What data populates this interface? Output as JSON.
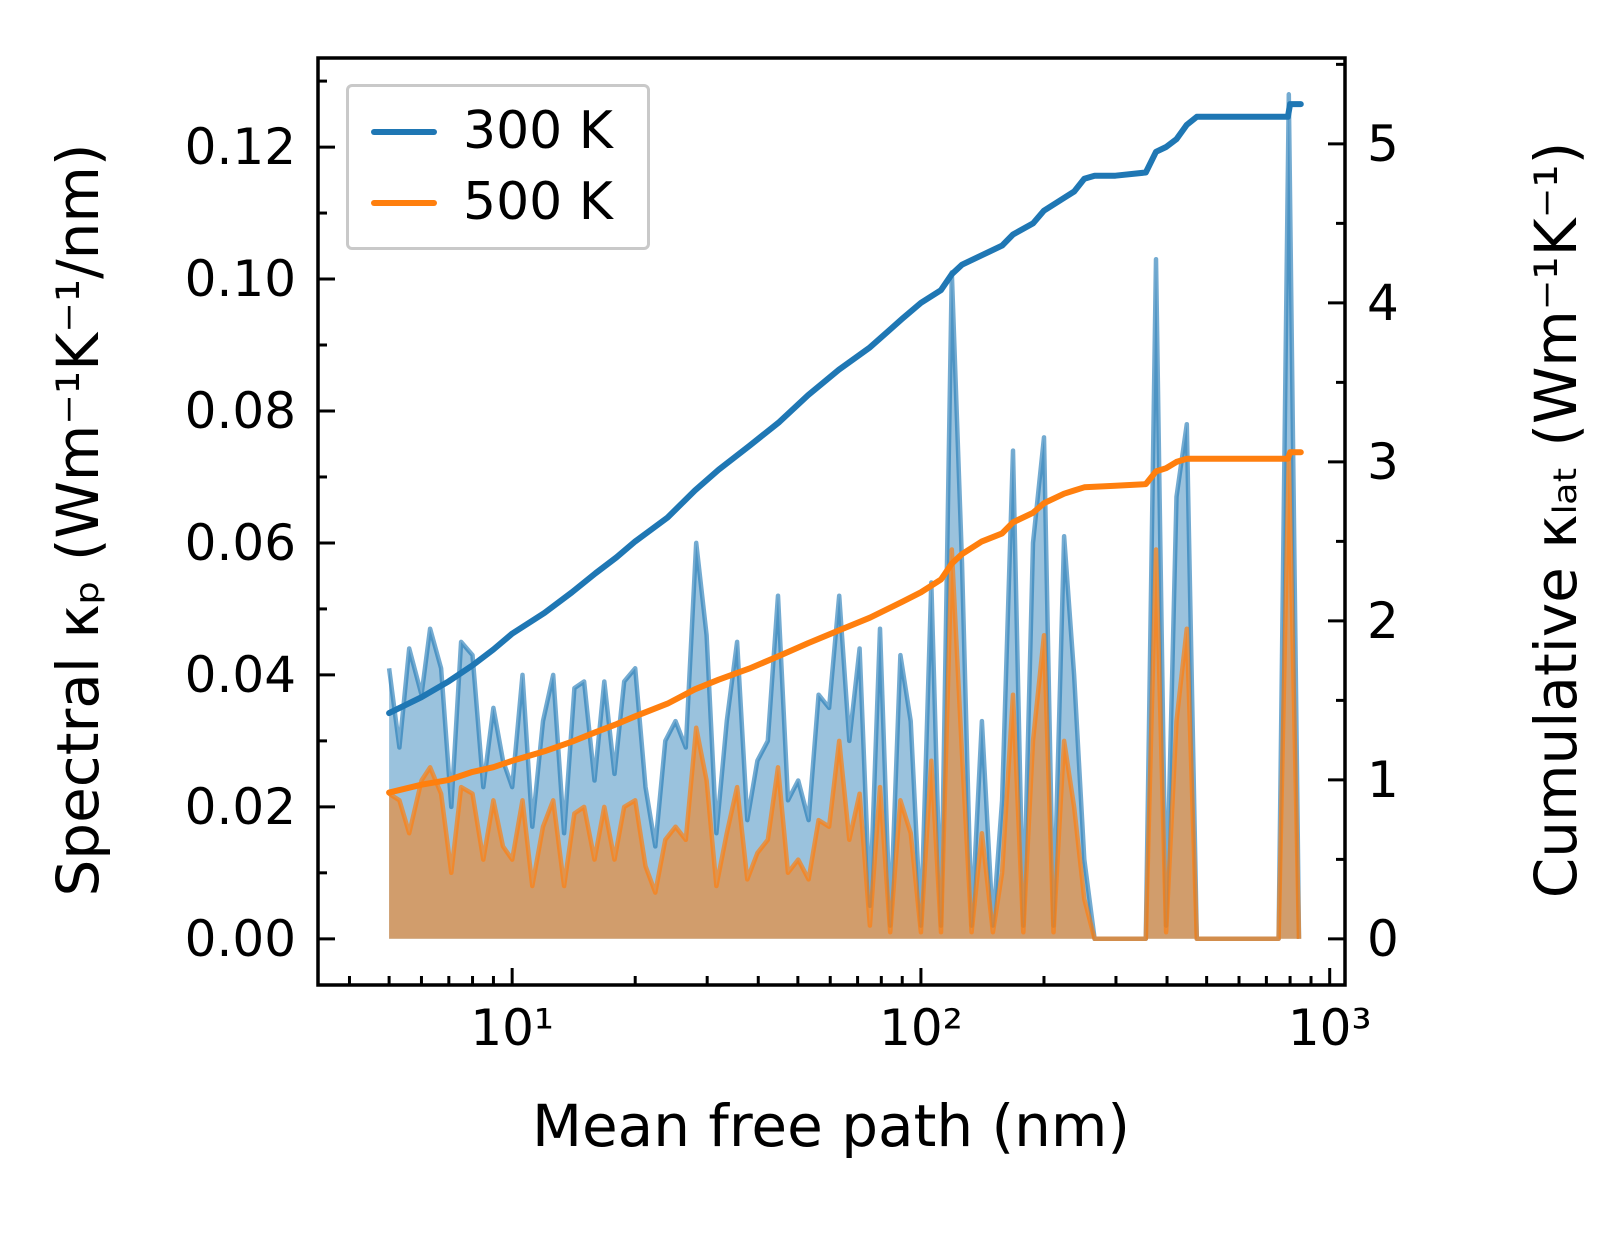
{
  "chart_data": {
    "type": "line",
    "title": "",
    "xlabel": "Mean free path (nm)",
    "ylabel_left": "Spectral κₚ (Wm⁻¹K⁻¹/nm)",
    "ylabel_right": "Cumulative κₗₐₜ (Wm⁻¹K⁻¹)",
    "x_scale": "log",
    "xlim": [
      3.35,
      1090
    ],
    "ylim_left": [
      -0.007,
      0.1335
    ],
    "ylim_right": [
      -0.29,
      5.54
    ],
    "legend_position": "upper left",
    "grid": false,
    "legend": [
      {
        "label": "300 K",
        "color": "#1f77b4"
      },
      {
        "label": "500 K",
        "color": "#ff7f0e"
      }
    ],
    "colors": {
      "c300": "#1f77b4",
      "c500": "#ff7f0e",
      "c300_light": "rgba(31,119,180,0.62)",
      "c500_light": "rgba(255,127,14,0.68)",
      "fill300": "rgba(31,119,180,0.45)",
      "fill500": "rgba(255,127,14,0.55)",
      "axis": "#000000"
    },
    "x_major_ticks": [
      {
        "v": 10,
        "label": "10¹"
      },
      {
        "v": 100,
        "label": "10²"
      },
      {
        "v": 1000,
        "label": "10³"
      }
    ],
    "x_minor_ticks": [
      4,
      5,
      6,
      7,
      8,
      9,
      20,
      30,
      40,
      50,
      60,
      70,
      80,
      90,
      200,
      300,
      400,
      500,
      600,
      700,
      800,
      900
    ],
    "y_left_ticks": [
      {
        "v": 0.0,
        "label": "0.00"
      },
      {
        "v": 0.02,
        "label": "0.02"
      },
      {
        "v": 0.04,
        "label": "0.04"
      },
      {
        "v": 0.06,
        "label": "0.06"
      },
      {
        "v": 0.08,
        "label": "0.08"
      },
      {
        "v": 0.1,
        "label": "0.10"
      },
      {
        "v": 0.12,
        "label": "0.12"
      }
    ],
    "y_left_minor_ticks": [
      0.01,
      0.03,
      0.05,
      0.07,
      0.09,
      0.11,
      0.13
    ],
    "y_right_ticks": [
      {
        "v": 0,
        "label": "0"
      },
      {
        "v": 1,
        "label": "1"
      },
      {
        "v": 2,
        "label": "2"
      },
      {
        "v": 3,
        "label": "3"
      },
      {
        "v": 4,
        "label": "4"
      },
      {
        "v": 5,
        "label": "5"
      }
    ],
    "y_right_minor_ticks": [
      0.5,
      1.5,
      2.5,
      3.5,
      4.5,
      5.5
    ],
    "series": {
      "x_spectral": [
        5.0,
        5.3,
        5.6,
        6.0,
        6.3,
        6.7,
        7.1,
        7.5,
        8.0,
        8.5,
        9.0,
        9.5,
        10.0,
        10.6,
        11.2,
        11.9,
        12.6,
        13.4,
        14.2,
        15.0,
        15.9,
        16.8,
        17.8,
        18.8,
        20.0,
        21.2,
        22.4,
        23.7,
        25.1,
        26.6,
        28.2,
        29.9,
        31.6,
        33.5,
        35.5,
        37.6,
        39.8,
        42.2,
        44.7,
        47.3,
        50.1,
        53.1,
        56.2,
        59.6,
        63.1,
        66.8,
        70.8,
        75.0,
        79.4,
        84.1,
        89.1,
        94.4,
        100,
        106,
        112,
        119,
        126,
        133,
        141,
        150,
        158,
        168,
        178,
        188,
        200,
        211,
        224,
        237,
        251,
        266,
        282,
        299,
        316,
        335,
        355,
        376,
        398,
        422,
        447,
        473,
        501,
        531,
        562,
        596,
        631,
        668,
        708,
        750,
        794,
        841
      ],
      "spectral_300": [
        0.041,
        0.029,
        0.044,
        0.037,
        0.047,
        0.041,
        0.02,
        0.045,
        0.043,
        0.023,
        0.035,
        0.027,
        0.023,
        0.04,
        0.017,
        0.033,
        0.04,
        0.016,
        0.038,
        0.039,
        0.024,
        0.039,
        0.025,
        0.039,
        0.041,
        0.023,
        0.014,
        0.03,
        0.033,
        0.029,
        0.06,
        0.046,
        0.016,
        0.033,
        0.045,
        0.018,
        0.027,
        0.03,
        0.052,
        0.021,
        0.024,
        0.018,
        0.037,
        0.035,
        0.052,
        0.03,
        0.044,
        0.005,
        0.047,
        0.002,
        0.043,
        0.033,
        0.002,
        0.054,
        0.002,
        0.101,
        0.057,
        0.002,
        0.033,
        0.002,
        0.021,
        0.074,
        0.002,
        0.06,
        0.076,
        0.002,
        0.061,
        0.04,
        0.012,
        0.0,
        0.0,
        0.0,
        0.0,
        0.0,
        0.0,
        0.103,
        0.002,
        0.067,
        0.078,
        0.0,
        0.0,
        0.0,
        0.0,
        0.0,
        0.0,
        0.0,
        0.0,
        0.0,
        0.128,
        0.0
      ],
      "spectral_500": [
        0.022,
        0.021,
        0.016,
        0.024,
        0.026,
        0.022,
        0.01,
        0.023,
        0.022,
        0.012,
        0.021,
        0.014,
        0.012,
        0.021,
        0.008,
        0.017,
        0.021,
        0.008,
        0.019,
        0.02,
        0.012,
        0.02,
        0.012,
        0.02,
        0.021,
        0.011,
        0.007,
        0.015,
        0.017,
        0.015,
        0.032,
        0.024,
        0.008,
        0.016,
        0.023,
        0.009,
        0.013,
        0.015,
        0.026,
        0.01,
        0.012,
        0.009,
        0.018,
        0.017,
        0.03,
        0.015,
        0.022,
        0.002,
        0.023,
        0.001,
        0.021,
        0.016,
        0.001,
        0.027,
        0.001,
        0.059,
        0.028,
        0.001,
        0.016,
        0.001,
        0.01,
        0.037,
        0.001,
        0.03,
        0.046,
        0.001,
        0.03,
        0.02,
        0.006,
        0.0,
        0.0,
        0.0,
        0.0,
        0.0,
        0.0,
        0.059,
        0.001,
        0.033,
        0.047,
        0.0,
        0.0,
        0.0,
        0.0,
        0.0,
        0.0,
        0.0,
        0.0,
        0.0,
        0.073,
        0.0
      ],
      "cumulative_300": [
        [
          5,
          1.42
        ],
        [
          6,
          1.52
        ],
        [
          7,
          1.62
        ],
        [
          8,
          1.72
        ],
        [
          9,
          1.82
        ],
        [
          10,
          1.92
        ],
        [
          12,
          2.05
        ],
        [
          14,
          2.18
        ],
        [
          16,
          2.3
        ],
        [
          18,
          2.4
        ],
        [
          20,
          2.5
        ],
        [
          24,
          2.65
        ],
        [
          28,
          2.82
        ],
        [
          32,
          2.95
        ],
        [
          38,
          3.1
        ],
        [
          45,
          3.25
        ],
        [
          53,
          3.42
        ],
        [
          63,
          3.58
        ],
        [
          75,
          3.72
        ],
        [
          90,
          3.9
        ],
        [
          100,
          4.0
        ],
        [
          112,
          4.08
        ],
        [
          119,
          4.18
        ],
        [
          126,
          4.24
        ],
        [
          141,
          4.3
        ],
        [
          158,
          4.36
        ],
        [
          168,
          4.43
        ],
        [
          188,
          4.5
        ],
        [
          200,
          4.58
        ],
        [
          224,
          4.66
        ],
        [
          237,
          4.7
        ],
        [
          251,
          4.78
        ],
        [
          266,
          4.8
        ],
        [
          299,
          4.8
        ],
        [
          355,
          4.82
        ],
        [
          376,
          4.95
        ],
        [
          398,
          4.98
        ],
        [
          422,
          5.03
        ],
        [
          447,
          5.12
        ],
        [
          473,
          5.17
        ],
        [
          700,
          5.17
        ],
        [
          790,
          5.17
        ],
        [
          800,
          5.25
        ],
        [
          850,
          5.25
        ]
      ],
      "cumulative_500": [
        [
          5,
          0.92
        ],
        [
          6,
          0.97
        ],
        [
          7,
          1.0
        ],
        [
          8,
          1.05
        ],
        [
          9,
          1.08
        ],
        [
          10,
          1.12
        ],
        [
          12,
          1.18
        ],
        [
          14,
          1.24
        ],
        [
          16,
          1.3
        ],
        [
          18,
          1.35
        ],
        [
          20,
          1.4
        ],
        [
          24,
          1.48
        ],
        [
          28,
          1.57
        ],
        [
          32,
          1.63
        ],
        [
          38,
          1.7
        ],
        [
          45,
          1.78
        ],
        [
          53,
          1.86
        ],
        [
          63,
          1.94
        ],
        [
          75,
          2.02
        ],
        [
          90,
          2.12
        ],
        [
          100,
          2.18
        ],
        [
          112,
          2.26
        ],
        [
          119,
          2.36
        ],
        [
          126,
          2.42
        ],
        [
          141,
          2.5
        ],
        [
          158,
          2.55
        ],
        [
          168,
          2.62
        ],
        [
          188,
          2.68
        ],
        [
          200,
          2.74
        ],
        [
          224,
          2.8
        ],
        [
          237,
          2.82
        ],
        [
          251,
          2.84
        ],
        [
          299,
          2.85
        ],
        [
          355,
          2.86
        ],
        [
          376,
          2.94
        ],
        [
          398,
          2.96
        ],
        [
          422,
          3.0
        ],
        [
          447,
          3.02
        ],
        [
          700,
          3.02
        ],
        [
          790,
          3.02
        ],
        [
          800,
          3.06
        ],
        [
          850,
          3.06
        ]
      ]
    }
  }
}
